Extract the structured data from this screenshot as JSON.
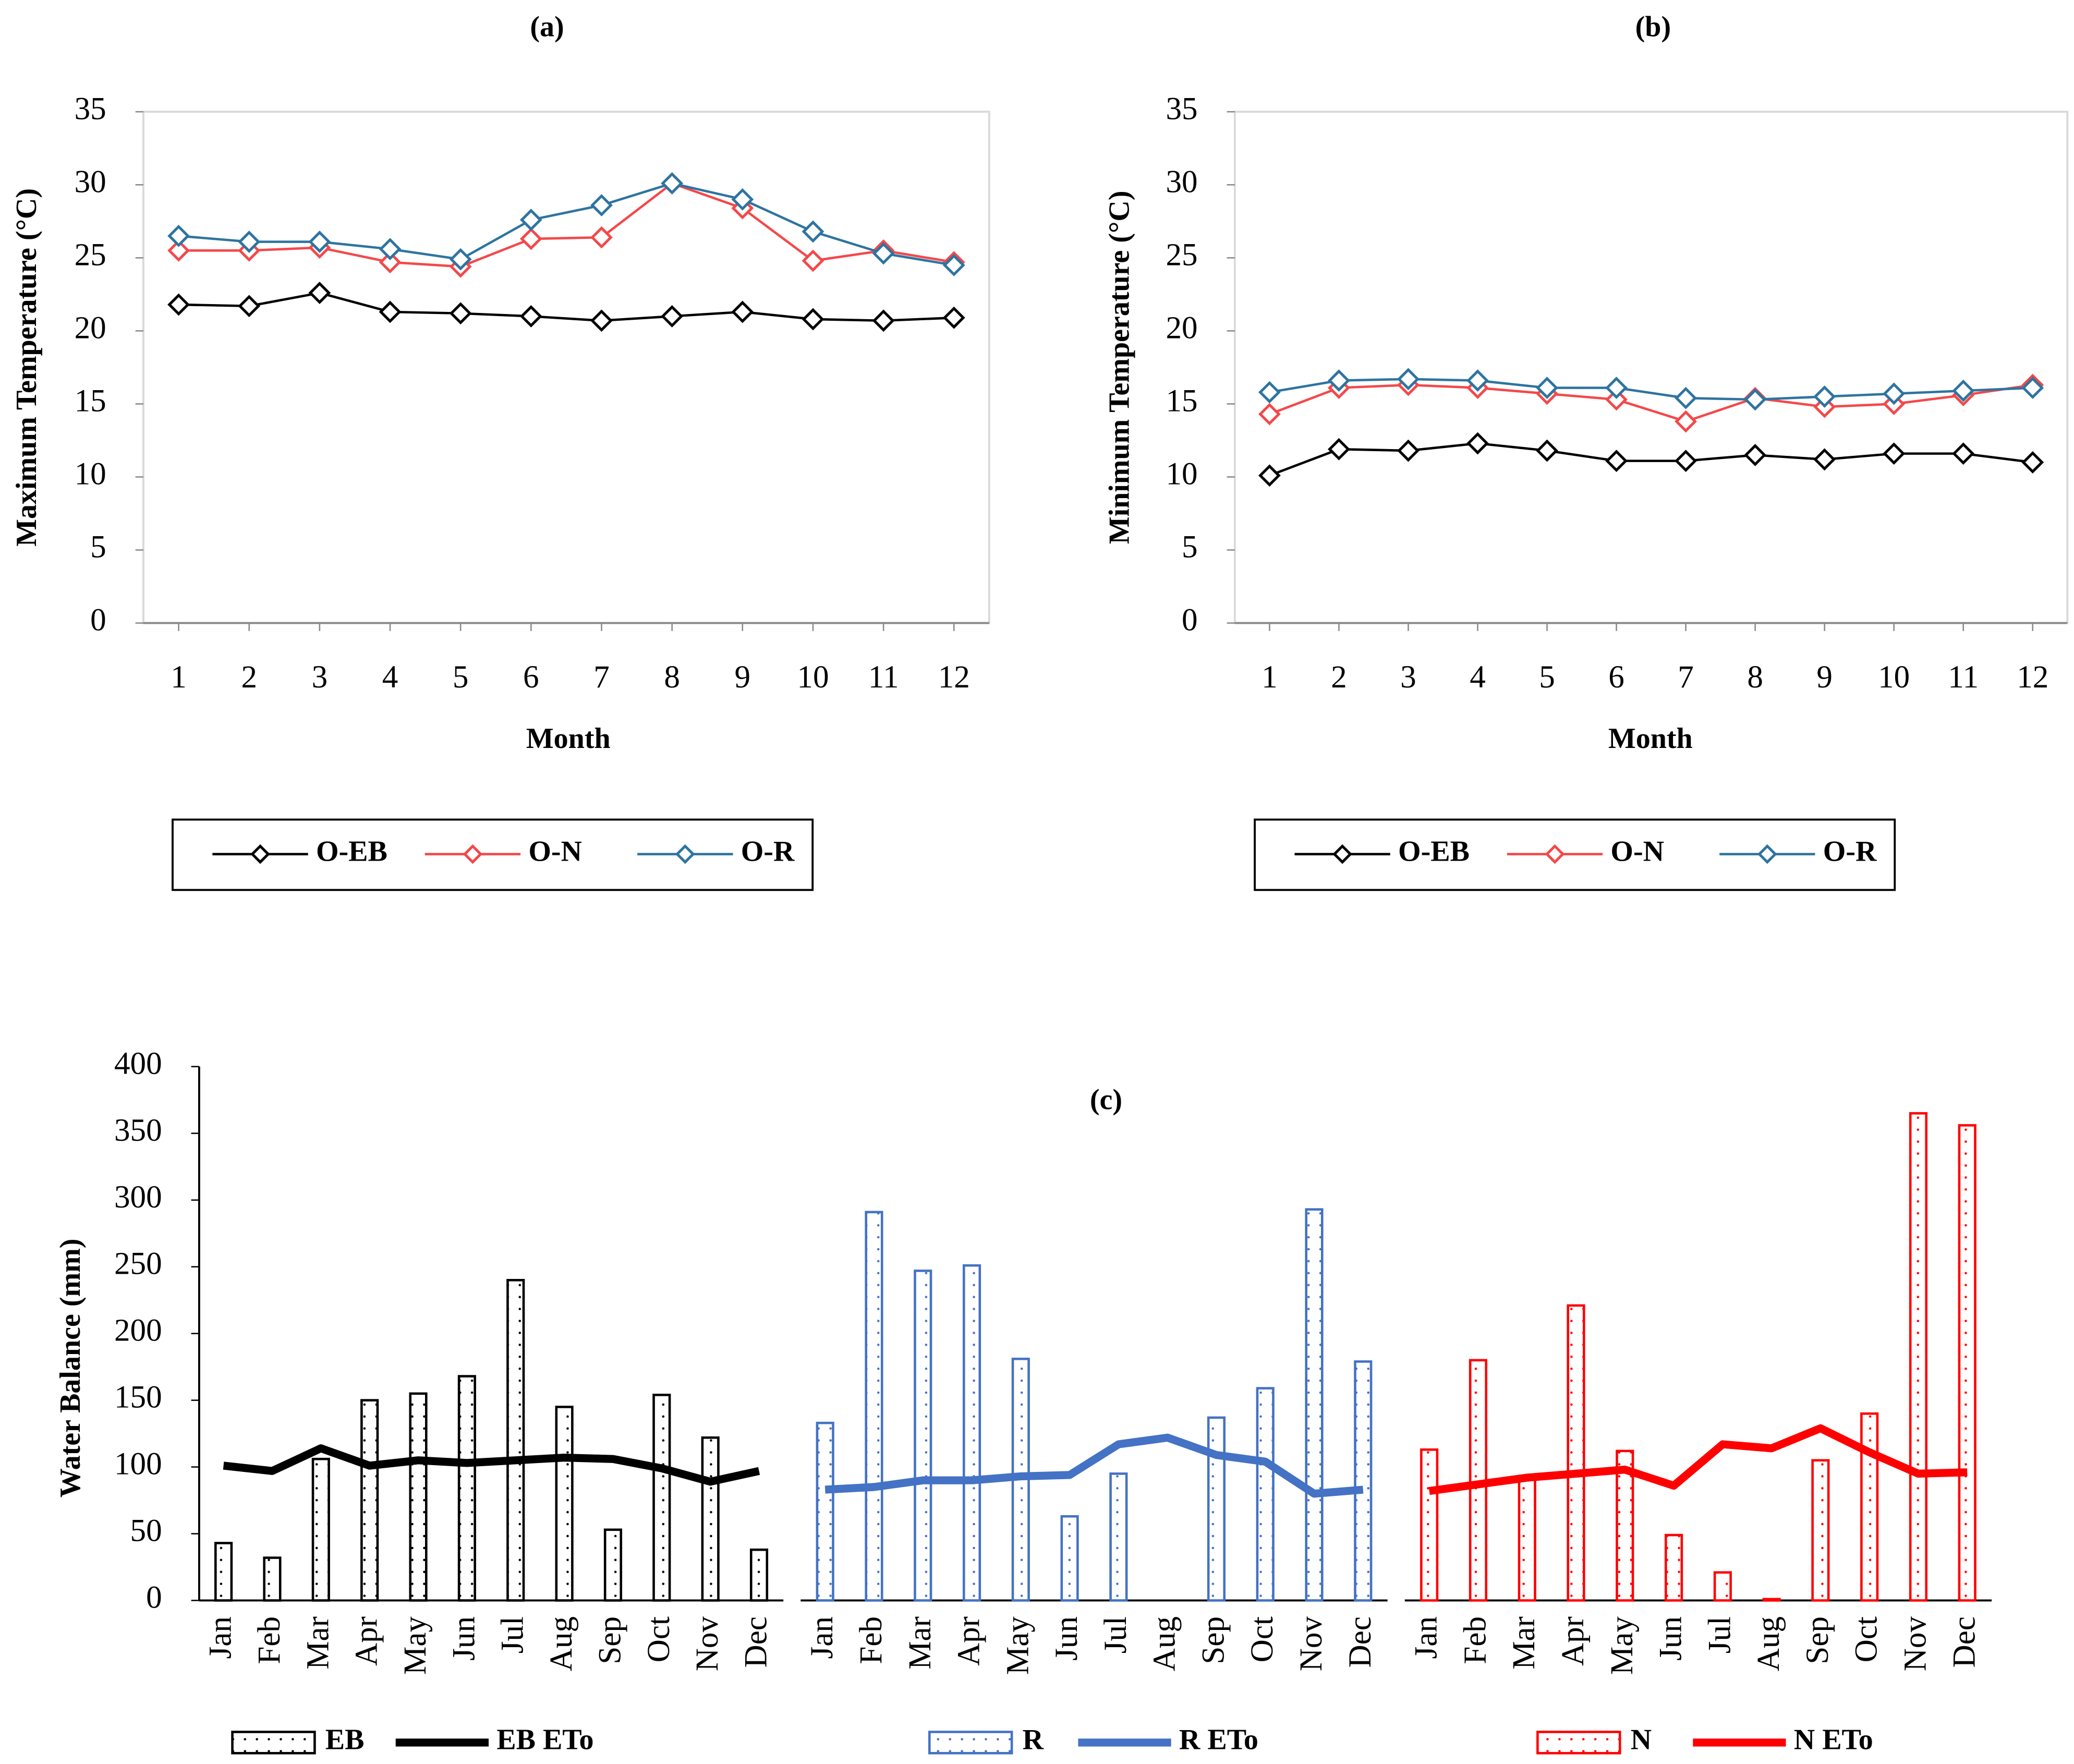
{
  "chart_data": [
    {
      "type": "line",
      "title": "(a)",
      "x_label": "Month",
      "y_label": "Maximum Temperature (°C)",
      "x": [
        1,
        2,
        3,
        4,
        5,
        6,
        7,
        8,
        9,
        10,
        11,
        12
      ],
      "xlim": [
        0.5,
        12.5
      ],
      "xticks": [
        1,
        2,
        3,
        4,
        5,
        6,
        7,
        8,
        9,
        10,
        11,
        12
      ],
      "ylim": [
        0,
        35
      ],
      "yticks": [
        0,
        5,
        10,
        15,
        20,
        25,
        30,
        35
      ],
      "legend": "bottom",
      "series": [
        {
          "name": "O-EB",
          "color": "#000000",
          "values": [
            21.8,
            21.7,
            22.6,
            21.3,
            21.2,
            21.0,
            20.7,
            21.0,
            21.3,
            20.8,
            20.7,
            20.9
          ]
        },
        {
          "name": "O-N",
          "color": "#f4484a",
          "values": [
            25.5,
            25.5,
            25.7,
            24.7,
            24.4,
            26.3,
            26.4,
            30.1,
            28.4,
            24.8,
            25.5,
            24.7
          ]
        },
        {
          "name": "O-R",
          "color": "#2e74a0",
          "values": [
            26.5,
            26.1,
            26.1,
            25.6,
            24.9,
            27.6,
            28.6,
            30.1,
            29.0,
            26.8,
            25.3,
            24.5
          ]
        }
      ]
    },
    {
      "type": "line",
      "title": "(b)",
      "x_label": "Month",
      "y_label": "Minimum Temperature (°C)",
      "x": [
        1,
        2,
        3,
        4,
        5,
        6,
        7,
        8,
        9,
        10,
        11,
        12
      ],
      "xlim": [
        0.5,
        12.5
      ],
      "xticks": [
        1,
        2,
        3,
        4,
        5,
        6,
        7,
        8,
        9,
        10,
        11,
        12
      ],
      "ylim": [
        0,
        35
      ],
      "yticks": [
        0,
        5,
        10,
        15,
        20,
        25,
        30,
        35
      ],
      "legend": "bottom",
      "series": [
        {
          "name": "O-EB",
          "color": "#000000",
          "values": [
            10.1,
            11.9,
            11.8,
            12.3,
            11.8,
            11.1,
            11.1,
            11.5,
            11.2,
            11.6,
            11.6,
            11.0
          ]
        },
        {
          "name": "O-N",
          "color": "#f4484a",
          "values": [
            14.3,
            16.1,
            16.3,
            16.1,
            15.7,
            15.3,
            13.8,
            15.4,
            14.8,
            15.0,
            15.6,
            16.3
          ]
        },
        {
          "name": "O-R",
          "color": "#2e74a0",
          "values": [
            15.8,
            16.6,
            16.7,
            16.6,
            16.1,
            16.1,
            15.4,
            15.3,
            15.5,
            15.7,
            15.9,
            16.1
          ]
        }
      ]
    },
    {
      "type": "bar-line",
      "title": "(c)",
      "y_label": "Water Balance (mm)",
      "categories": [
        "Jan",
        "Feb",
        "Mar",
        "Apr",
        "May",
        "Jun",
        "Jul",
        "Aug",
        "Sep",
        "Oct",
        "Nov",
        "Dec"
      ],
      "ylim": [
        0,
        400
      ],
      "yticks": [
        0,
        50,
        100,
        150,
        200,
        250,
        300,
        350,
        400
      ],
      "legend": "bottom",
      "panels": [
        {
          "bar": {
            "name": "EB",
            "color": "#000000",
            "values": [
              43,
              32,
              106,
              150,
              155,
              168,
              240,
              145,
              53,
              154,
              122,
              38
            ]
          },
          "line": {
            "name": "EB ETo",
            "color": "#000000",
            "values": [
              101,
              97,
              114,
              101,
              105,
              103,
              105,
              107,
              106,
              99,
              89,
              97
            ]
          }
        },
        {
          "bar": {
            "name": "R",
            "color": "#4472c4",
            "values": [
              133,
              291,
              247,
              251,
              181,
              63,
              95,
              0,
              137,
              159,
              293,
              179
            ]
          },
          "line": {
            "name": "R ETo",
            "color": "#4472c4",
            "values": [
              83,
              85,
              90,
              90,
              93,
              94,
              117,
              122,
              109,
              104,
              80,
              83
            ]
          }
        },
        {
          "bar": {
            "name": "N",
            "color": "#ff0000",
            "values": [
              113,
              180,
              92,
              221,
              112,
              49,
              21,
              1,
              105,
              140,
              365,
              356
            ]
          },
          "line": {
            "name": "N ETo",
            "color": "#ff0000",
            "values": [
              82,
              87,
              92,
              95,
              98,
              86,
              117,
              114,
              129,
              111,
              95,
              96
            ]
          }
        }
      ]
    }
  ]
}
